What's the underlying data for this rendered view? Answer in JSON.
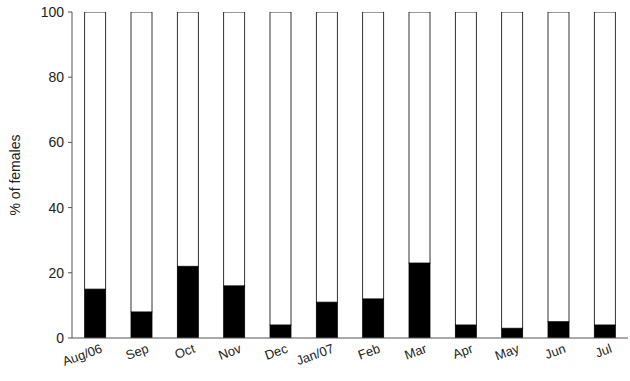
{
  "chart_data": {
    "type": "bar",
    "stacked": true,
    "grid": false,
    "y_label": "% of females",
    "categories": [
      "Aug/06",
      "Sep",
      "Oct",
      "Nov",
      "Dec",
      "Jan/07",
      "Feb",
      "Mar",
      "Apr",
      "May",
      "Jun",
      "Jul"
    ],
    "series": [
      {
        "color": "#000000",
        "values": [
          15,
          8,
          22,
          16,
          4,
          11,
          12,
          23,
          4,
          3,
          5,
          4
        ]
      },
      {
        "color": "#ffffff",
        "values": [
          85,
          92,
          78,
          84,
          96,
          89,
          88,
          77,
          96,
          97,
          95,
          96
        ]
      }
    ],
    "ylim": [
      0,
      100
    ],
    "yticks": [
      0,
      20,
      40,
      60,
      80,
      100
    ]
  }
}
